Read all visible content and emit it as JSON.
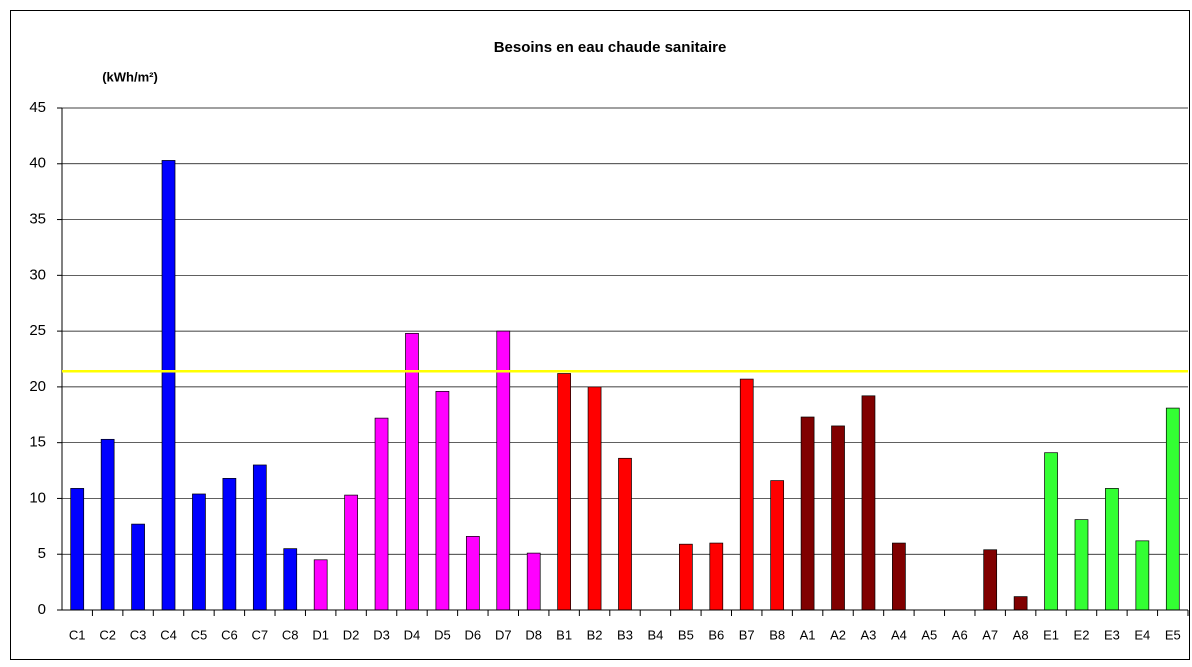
{
  "chart_data": {
    "type": "bar",
    "title": "Besoins  en eau chaude sanitaire",
    "y_label": "(kWh/m²)",
    "categories": [
      "C1",
      "C2",
      "C3",
      "C4",
      "C5",
      "C6",
      "C7",
      "C8",
      "D1",
      "D2",
      "D3",
      "D4",
      "D5",
      "D6",
      "D7",
      "D8",
      "B1",
      "B2",
      "B3",
      "B4",
      "B5",
      "B6",
      "B7",
      "B8",
      "A1",
      "A2",
      "A3",
      "A4",
      "A5",
      "A6",
      "A7",
      "A8",
      "E1",
      "E2",
      "E3",
      "E4",
      "E5"
    ],
    "values": [
      10.9,
      15.3,
      7.7,
      40.3,
      10.4,
      11.8,
      13,
      5.5,
      4.5,
      10.3,
      17.2,
      24.8,
      19.6,
      6.6,
      25,
      5.1,
      21.2,
      20,
      13.6,
      0,
      5.9,
      6,
      20.7,
      11.6,
      17.3,
      16.5,
      19.2,
      6,
      0,
      0,
      5.4,
      1.2,
      14.1,
      8.1,
      10.9,
      6.2,
      18.1
    ],
    "colors": [
      "#0000ff",
      "#0000ff",
      "#0000ff",
      "#0000ff",
      "#0000ff",
      "#0000ff",
      "#0000ff",
      "#0000ff",
      "#ff00ff",
      "#ff00ff",
      "#ff00ff",
      "#ff00ff",
      "#ff00ff",
      "#ff00ff",
      "#ff00ff",
      "#ff00ff",
      "#ff0000",
      "#ff0000",
      "#ff0000",
      "#ff0000",
      "#ff0000",
      "#ff0000",
      "#ff0000",
      "#ff0000",
      "#800000",
      "#800000",
      "#800000",
      "#800000",
      "#800000",
      "#800000",
      "#800000",
      "#800000",
      "#33ff33",
      "#33ff33",
      "#33ff33",
      "#33ff33",
      "#33ff33"
    ],
    "reference_line": {
      "value": 21.4,
      "color": "#ffff00"
    },
    "ylim": [
      0,
      45
    ],
    "yticks": [
      0,
      5,
      10,
      15,
      20,
      25,
      30,
      35,
      40,
      45
    ],
    "grid": true
  }
}
